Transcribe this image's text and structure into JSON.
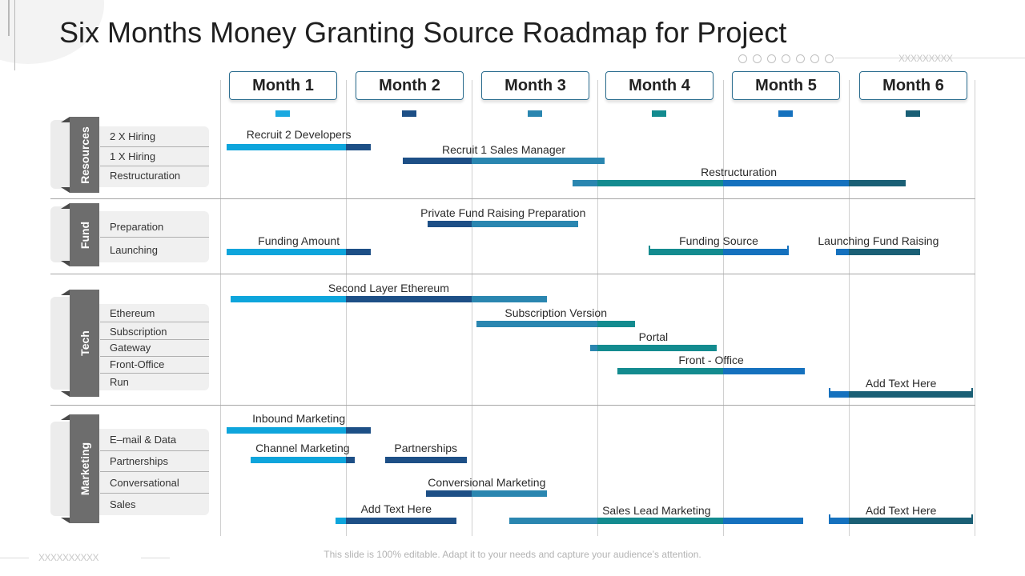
{
  "title": "Six Months Money Granting Source Roadmap for Project",
  "footer": "This slide is 100% editable. Adapt it to your needs and capture your audience’s attention.",
  "deco": {
    "top_right_text": "XXXXXXXXX",
    "bottom_left_text": "XXXXXXXXXX"
  },
  "colors": {
    "light_blue": "#0ea5dc",
    "navy": "#1d4f86",
    "steel": "#2a86b0",
    "teal": "#138b8f",
    "royal": "#1571be",
    "dark_teal": "#1a5f75",
    "category_tab": "#6d6d6d"
  },
  "months": [
    {
      "label": "Month 1",
      "accent": "#1aa9e0"
    },
    {
      "label": "Month 2",
      "accent": "#1d4f86"
    },
    {
      "label": "Month 3",
      "accent": "#2a86b0"
    },
    {
      "label": "Month 4",
      "accent": "#138b8f"
    },
    {
      "label": "Month 5",
      "accent": "#1571be"
    },
    {
      "label": "Month 6",
      "accent": "#1a5f75"
    }
  ],
  "categories": [
    {
      "name": "Resources",
      "items": [
        "2 X Hiring",
        "1 X Hiring",
        "Restructuration"
      ]
    },
    {
      "name": "Fund",
      "items": [
        "Preparation",
        "Launching"
      ]
    },
    {
      "name": "Tech",
      "items": [
        "Ethereum",
        "Subscription",
        "Gateway",
        "Front-Office",
        "Run"
      ]
    },
    {
      "name": "Marketing",
      "items": [
        "E–mail & Data",
        "Partnerships",
        "Conversational",
        "Sales"
      ]
    }
  ],
  "tasks": [
    {
      "label": "Recruit 2 Developers",
      "start": 0.05,
      "end": 1.2
    },
    {
      "label": "Recruit 1 Sales Manager",
      "start": 1.45,
      "end": 3.06
    },
    {
      "label": "Restructuration",
      "start": 2.8,
      "end": 5.45
    },
    {
      "label": "Private Fund Raising Preparation",
      "start": 1.65,
      "end": 2.85
    },
    {
      "label": "Funding Amount",
      "start": 0.05,
      "end": 1.2
    },
    {
      "label": "Funding Source",
      "start": 3.41,
      "end": 4.52
    },
    {
      "label": "Launching Fund Raising",
      "start": 4.9,
      "end": 5.57
    },
    {
      "label": "Second Layer Ethereum",
      "start": 0.08,
      "end": 2.6
    },
    {
      "label": "Subscription Version",
      "start": 2.04,
      "end": 3.3
    },
    {
      "label": "Portal",
      "start": 2.94,
      "end": 3.95
    },
    {
      "label": "Front - Office",
      "start": 3.16,
      "end": 4.65
    },
    {
      "label": "Add Text Here",
      "start": 4.84,
      "end": 5.99
    },
    {
      "label": "Inbound Marketing",
      "start": 0.05,
      "end": 1.2
    },
    {
      "label": "Channel Marketing",
      "start": 0.24,
      "end": 1.07
    },
    {
      "label": "Partnerships",
      "start": 1.31,
      "end": 1.96
    },
    {
      "label": "Conversional Marketing",
      "start": 1.64,
      "end": 2.6
    },
    {
      "label": "Add Text Here",
      "start": 0.92,
      "end": 1.88
    },
    {
      "label": "Sales Lead Marketing",
      "start": 2.3,
      "end": 4.64
    },
    {
      "label": "Add Text Here",
      "start": 4.84,
      "end": 5.99
    }
  ]
}
